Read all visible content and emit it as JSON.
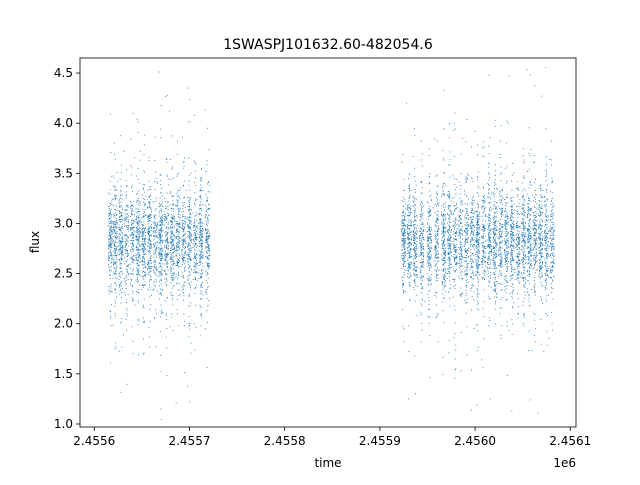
{
  "chart_data": {
    "type": "scatter",
    "title": "1SWASPJ101632.60-482054.6",
    "xlabel": "time",
    "ylabel": "flux",
    "x_offset_label": "1e6",
    "xlim": [
      2455585,
      2456106
    ],
    "ylim": [
      0.97,
      4.65
    ],
    "x_ticks": [
      2455600,
      2455700,
      2455800,
      2455900,
      2456000,
      2456100
    ],
    "x_tick_labels": [
      "2.4556",
      "2.4557",
      "2.4558",
      "2.4559",
      "2.4560",
      "2.4561"
    ],
    "y_ticks": [
      1.0,
      1.5,
      2.0,
      2.5,
      3.0,
      3.5,
      4.0,
      4.5
    ],
    "y_tick_labels": [
      "1.0",
      "1.5",
      "2.0",
      "2.5",
      "3.0",
      "3.5",
      "4.0",
      "4.5"
    ],
    "grid": false,
    "marker_color": "#1f77b4",
    "series": [
      {
        "observing_seasons": [
          {
            "x_range": [
              2455616,
              2455724
            ],
            "median_flux": 2.82,
            "typical_range": [
              2.3,
              3.3
            ]
          },
          {
            "x_range": [
              2455923,
              2456083
            ],
            "median_flux": 2.82,
            "typical_range": [
              2.2,
              3.4
            ]
          }
        ],
        "night_clusters_x": [
          2455617,
          2455622,
          2455628,
          2455634,
          2455640,
          2455646,
          2455652,
          2455658,
          2455664,
          2455670,
          2455676,
          2455682,
          2455688,
          2455694,
          2455700,
          2455706,
          2455712,
          2455719,
          2455925,
          2455931,
          2455937,
          2455944,
          2455952,
          2455960,
          2455967,
          2455973,
          2455979,
          2455985,
          2455991,
          2455997,
          2456003,
          2456009,
          2456015,
          2456021,
          2456027,
          2456033,
          2456039,
          2456045,
          2456051,
          2456057,
          2456063,
          2456069,
          2456075,
          2456081
        ],
        "extreme_points": [
          {
            "x": 2455668,
            "y": 4.51
          },
          {
            "x": 2455699,
            "y": 4.35
          },
          {
            "x": 2455679,
            "y": 4.12
          },
          {
            "x": 2455645,
            "y": 4.04
          },
          {
            "x": 2455700,
            "y": 1.22
          },
          {
            "x": 2455670,
            "y": 1.15
          },
          {
            "x": 2455698,
            "y": 1.38
          },
          {
            "x": 2455686,
            "y": 1.21
          },
          {
            "x": 2456063,
            "y": 4.37
          },
          {
            "x": 2456070,
            "y": 4.27
          },
          {
            "x": 2456036,
            "y": 4.47
          },
          {
            "x": 2456058,
            "y": 4.48
          },
          {
            "x": 2455928,
            "y": 4.2
          },
          {
            "x": 2455996,
            "y": 1.14
          },
          {
            "x": 2456066,
            "y": 1.11
          },
          {
            "x": 2456058,
            "y": 1.24
          },
          {
            "x": 2456016,
            "y": 1.25
          },
          {
            "x": 2455930,
            "y": 1.25
          }
        ]
      }
    ]
  }
}
